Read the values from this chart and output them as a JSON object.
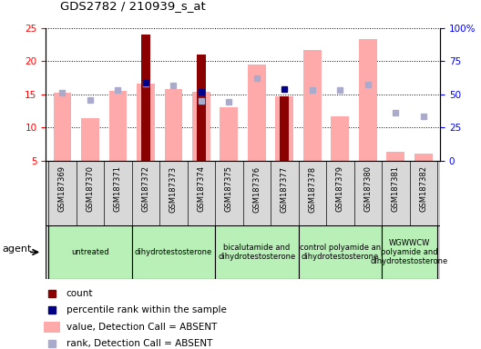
{
  "title": "GDS2782 / 210939_s_at",
  "samples": [
    "GSM187369",
    "GSM187370",
    "GSM187371",
    "GSM187372",
    "GSM187373",
    "GSM187374",
    "GSM187375",
    "GSM187376",
    "GSM187377",
    "GSM187378",
    "GSM187379",
    "GSM187380",
    "GSM187381",
    "GSM187382"
  ],
  "agents": [
    {
      "label": "untreated",
      "samples": [
        "GSM187369",
        "GSM187370",
        "GSM187371"
      ]
    },
    {
      "label": "dihydrotestosterone",
      "samples": [
        "GSM187372",
        "GSM187373",
        "GSM187374"
      ]
    },
    {
      "label": "bicalutamide and\ndihydrotestosterone",
      "samples": [
        "GSM187375",
        "GSM187376",
        "GSM187377"
      ]
    },
    {
      "label": "control polyamide an\ndihydrotestosterone",
      "samples": [
        "GSM187378",
        "GSM187379",
        "GSM187380"
      ]
    },
    {
      "label": "WGWWCW\npolyamide and\ndihydrotestosterone",
      "samples": [
        "GSM187381",
        "GSM187382"
      ]
    }
  ],
  "count_values": [
    null,
    null,
    null,
    24.0,
    null,
    21.0,
    null,
    null,
    14.7,
    null,
    null,
    null,
    null,
    null
  ],
  "rank_values": [
    null,
    null,
    null,
    16.8,
    null,
    15.3,
    null,
    null,
    15.8,
    null,
    null,
    null,
    null,
    null
  ],
  "absent_value": [
    15.2,
    11.4,
    15.5,
    16.6,
    15.8,
    15.3,
    13.1,
    19.5,
    14.7,
    21.7,
    11.7,
    23.3,
    6.3,
    6.0
  ],
  "absent_rank": [
    15.2,
    14.2,
    15.6,
    16.6,
    16.3,
    14.0,
    13.8,
    17.4,
    null,
    15.7,
    15.6,
    16.5,
    12.2,
    11.7
  ],
  "ylim_left": [
    5,
    25
  ],
  "ylim_right": [
    0,
    100
  ],
  "yticks_left": [
    5,
    10,
    15,
    20,
    25
  ],
  "yticks_right": [
    0,
    25,
    50,
    75,
    100
  ],
  "yticklabels_right": [
    "0",
    "25",
    "50",
    "75",
    "100%"
  ],
  "bar_color_count": "#8b0000",
  "bar_color_rank": "#00008b",
  "bar_color_absent_value": "#ffaaaa",
  "bar_color_absent_rank": "#aaaacc",
  "legend_items": [
    {
      "color": "#8b0000",
      "label": "count",
      "type": "square"
    },
    {
      "color": "#00008b",
      "label": "percentile rank within the sample",
      "type": "square"
    },
    {
      "color": "#ffaaaa",
      "label": "value, Detection Call = ABSENT",
      "type": "bar"
    },
    {
      "color": "#aaaacc",
      "label": "rank, Detection Call = ABSENT",
      "type": "square"
    }
  ],
  "agent_bg": "#b8f0b8",
  "sample_col_bg": "#d8d8d8"
}
